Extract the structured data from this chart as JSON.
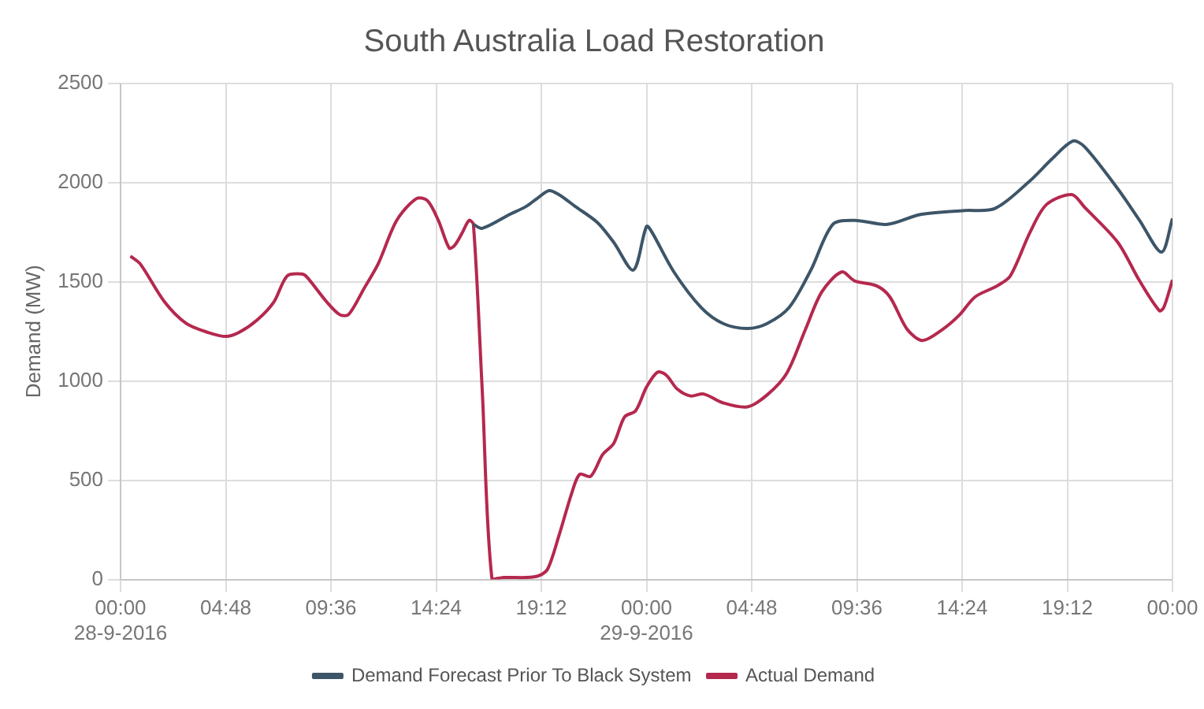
{
  "chart_data": {
    "type": "line",
    "title": "South Australia Load Restoration",
    "ylabel": "Demand (MW)",
    "xlim": [
      "2016-09-28T00:00",
      "2016-09-30T00:00"
    ],
    "xticks": [
      {
        "value": "2016-09-28T00:00",
        "label": "00:00\n28-9-2016"
      },
      {
        "value": "2016-09-28T04:48",
        "label": "04:48"
      },
      {
        "value": "2016-09-28T09:36",
        "label": "09:36"
      },
      {
        "value": "2016-09-28T14:24",
        "label": "14:24"
      },
      {
        "value": "2016-09-28T19:12",
        "label": "19:12"
      },
      {
        "value": "2016-09-29T00:00",
        "label": "00:00\n29-9-2016"
      },
      {
        "value": "2016-09-29T04:48",
        "label": "04:48"
      },
      {
        "value": "2016-09-29T09:36",
        "label": "09:36"
      },
      {
        "value": "2016-09-29T14:24",
        "label": "14:24"
      },
      {
        "value": "2016-09-29T19:12",
        "label": "19:12"
      },
      {
        "value": "2016-09-30T00:00",
        "label": "00:00"
      }
    ],
    "ylim": [
      0,
      2500
    ],
    "yticks": [
      0,
      500,
      1000,
      1500,
      2000,
      2500
    ],
    "grid": true,
    "legend": "bottom",
    "marker": "none",
    "line_style": "solid",
    "series": [
      {
        "name": "Demand Forecast Prior To Black System",
        "color": "#3d5568",
        "x": [
          "2016-09-28T16:06",
          "2016-09-28T16:30",
          "2016-09-28T17:45",
          "2016-09-28T18:30",
          "2016-09-28T19:00",
          "2016-09-28T19:33",
          "2016-09-28T20:00",
          "2016-09-28T20:45",
          "2016-09-28T21:45",
          "2016-09-28T22:30",
          "2016-09-28T23:24",
          "2016-09-29T00:00",
          "2016-09-29T00:15",
          "2016-09-29T01:15",
          "2016-09-29T02:30",
          "2016-09-29T03:30",
          "2016-09-29T04:36",
          "2016-09-29T05:30",
          "2016-09-29T06:30",
          "2016-09-29T07:30",
          "2016-09-29T08:30",
          "2016-09-29T09:30",
          "2016-09-29T11:00",
          "2016-09-29T12:30",
          "2016-09-29T14:30",
          "2016-09-29T15:54",
          "2016-09-29T17:30",
          "2016-09-29T18:30",
          "2016-09-29T19:27",
          "2016-09-29T20:00",
          "2016-09-29T21:30",
          "2016-09-29T22:30",
          "2016-09-29T23:30",
          "2016-09-30T00:00"
        ],
        "values": [
          1790,
          1770,
          1840,
          1880,
          1920,
          1960,
          1940,
          1880,
          1800,
          1700,
          1560,
          1780,
          1750,
          1550,
          1370,
          1290,
          1265,
          1290,
          1370,
          1560,
          1790,
          1810,
          1790,
          1840,
          1860,
          1870,
          2010,
          2120,
          2210,
          2180,
          1970,
          1810,
          1650,
          1820
        ]
      },
      {
        "name": "Actual Demand",
        "color": "#b5284e",
        "x": [
          "2016-09-28T00:27",
          "2016-09-28T00:54",
          "2016-09-28T02:00",
          "2016-09-28T03:00",
          "2016-09-28T04:00",
          "2016-09-28T04:48",
          "2016-09-28T05:24",
          "2016-09-28T06:15",
          "2016-09-28T07:00",
          "2016-09-28T07:36",
          "2016-09-28T08:15",
          "2016-09-28T08:30",
          "2016-09-28T09:24",
          "2016-09-28T10:00",
          "2016-09-28T10:24",
          "2016-09-28T11:06",
          "2016-09-28T11:45",
          "2016-09-28T12:36",
          "2016-09-28T13:30",
          "2016-09-28T14:00",
          "2016-09-28T14:30",
          "2016-09-28T15:00",
          "2016-09-28T15:15",
          "2016-09-28T15:36",
          "2016-09-28T15:54",
          "2016-09-28T16:06",
          "2016-09-28T16:30",
          "2016-09-28T16:57",
          "2016-09-28T17:30",
          "2016-09-28T18:30",
          "2016-09-28T19:06",
          "2016-09-28T19:30",
          "2016-09-28T20:00",
          "2016-09-28T20:36",
          "2016-09-28T20:57",
          "2016-09-28T21:27",
          "2016-09-28T22:00",
          "2016-09-28T22:30",
          "2016-09-28T23:00",
          "2016-09-28T23:30",
          "2016-09-29T00:00",
          "2016-09-29T00:30",
          "2016-09-29T00:54",
          "2016-09-29T01:24",
          "2016-09-29T02:00",
          "2016-09-29T02:36",
          "2016-09-29T03:30",
          "2016-09-29T04:36",
          "2016-09-29T05:30",
          "2016-09-29T06:24",
          "2016-09-29T07:15",
          "2016-09-29T08:00",
          "2016-09-29T08:54",
          "2016-09-29T09:30",
          "2016-09-29T10:30",
          "2016-09-29T11:06",
          "2016-09-29T11:54",
          "2016-09-29T12:36",
          "2016-09-29T13:30",
          "2016-09-29T14:15",
          "2016-09-29T15:00",
          "2016-09-29T16:00",
          "2016-09-29T16:36",
          "2016-09-29T17:30",
          "2016-09-29T18:15",
          "2016-09-29T19:24",
          "2016-09-29T20:00",
          "2016-09-29T21:30",
          "2016-09-29T22:30",
          "2016-09-29T23:24",
          "2016-09-29T23:36",
          "2016-09-30T00:00"
        ],
        "values": [
          1630,
          1590,
          1400,
          1290,
          1245,
          1225,
          1245,
          1310,
          1400,
          1530,
          1540,
          1525,
          1400,
          1335,
          1335,
          1465,
          1590,
          1810,
          1920,
          1910,
          1810,
          1670,
          1685,
          1750,
          1810,
          1790,
          960,
          0,
          10,
          10,
          20,
          55,
          220,
          440,
          530,
          520,
          630,
          685,
          820,
          850,
          970,
          1045,
          1030,
          960,
          925,
          935,
          890,
          870,
          930,
          1040,
          1260,
          1450,
          1550,
          1505,
          1480,
          1425,
          1260,
          1205,
          1260,
          1330,
          1425,
          1480,
          1530,
          1750,
          1890,
          1940,
          1875,
          1700,
          1505,
          1355,
          1370,
          1510
        ]
      }
    ]
  }
}
